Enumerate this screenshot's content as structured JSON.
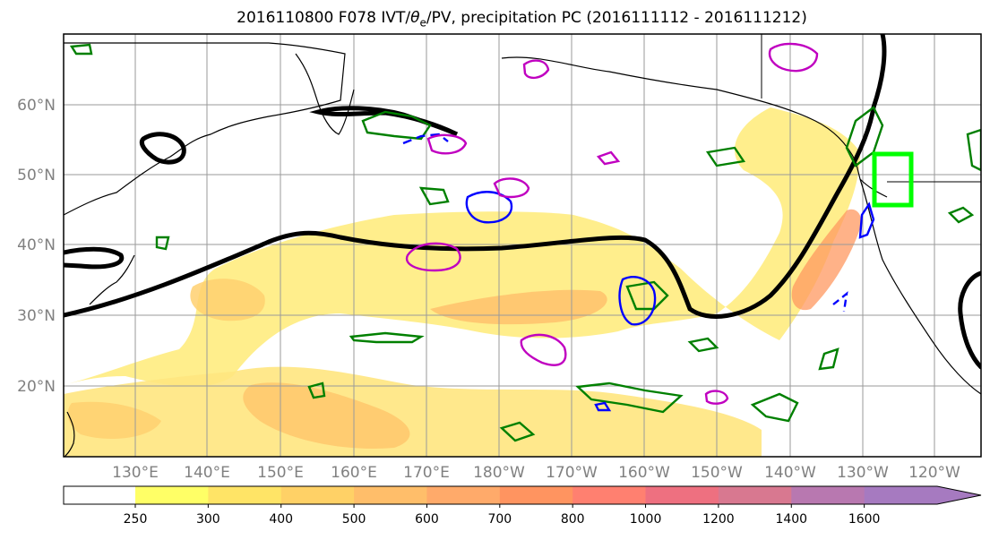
{
  "title": {
    "prefix": "2016110800 F078 IVT/",
    "theta": "θ",
    "theta_sub": "e",
    "suffix": "/PV, precipitation PC (2016111112 - 2016111212)"
  },
  "map": {
    "lat_labels": [
      "60°N",
      "50°N",
      "40°N",
      "30°N",
      "20°N"
    ],
    "lon_labels": [
      "130°E",
      "140°E",
      "150°E",
      "160°E",
      "170°E",
      "180°W",
      "170°W",
      "160°W",
      "150°W",
      "140°W",
      "130°W",
      "120°W"
    ],
    "colors": {
      "ivt_contour": "#000000",
      "positive_contour": "#008000",
      "negative_contour": "#0000ff",
      "pv_contour": "#c000c0",
      "target_box": "#00ff00",
      "coastline": "#000000"
    }
  },
  "colorbar": {
    "labels": [
      "250",
      "300",
      "400",
      "500",
      "600",
      "700",
      "800",
      "1000",
      "1200",
      "1400",
      "1600"
    ],
    "colors": [
      "#ffff66",
      "#ffe466",
      "#ffd166",
      "#ffbe6a",
      "#ffaa6a",
      "#ff9460",
      "#ff8070",
      "#ee7080",
      "#d87890",
      "#b878b0",
      "#a67ac0"
    ]
  }
}
